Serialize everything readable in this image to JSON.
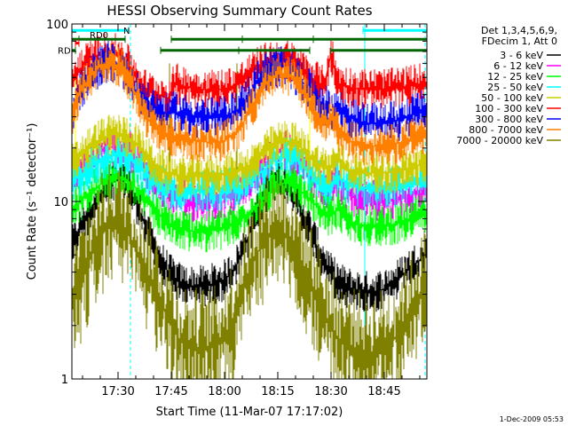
{
  "chart_data": {
    "type": "line",
    "title": "HESSI Observing Summary Count Rates",
    "xlabel": "Start Time (11-Mar-07 17:17:02)",
    "ylabel": "Count Rate (s⁻¹ detector⁻¹)",
    "y_scale": "log",
    "ylim": [
      1,
      100
    ],
    "xlim_minutes_after_17_17": [
      0,
      100
    ],
    "x_ticks": [
      {
        "label": "17:30",
        "minutes": 13
      },
      {
        "label": "17:45",
        "minutes": 28
      },
      {
        "label": "18:00",
        "minutes": 43
      },
      {
        "label": "18:15",
        "minutes": 58
      },
      {
        "label": "18:30",
        "minutes": 73
      },
      {
        "label": "18:45",
        "minutes": 88
      }
    ],
    "y_ticks": [
      {
        "label": "1",
        "value": 1
      },
      {
        "label": "10",
        "value": 10
      },
      {
        "label": "100",
        "value": 100
      }
    ],
    "legend_header": [
      "Det 1,3,4,5,6,9,",
      "FDecim 1, Att 0"
    ],
    "legend_position": "right",
    "series": [
      {
        "name": "3 - 6 keV",
        "color": "#000000",
        "x": [
          0,
          3,
          6,
          9,
          12,
          15,
          18,
          20,
          22,
          25,
          28,
          31,
          35,
          39,
          43,
          46,
          49,
          52,
          55,
          58,
          61,
          64,
          67,
          70,
          73,
          76,
          79,
          82,
          85,
          88,
          91,
          94,
          97,
          100
        ],
        "y": [
          5.5,
          7.5,
          9.5,
          11.5,
          13.5,
          12.8,
          10,
          8,
          6,
          4.6,
          3.8,
          3.4,
          3.3,
          3.4,
          3.6,
          4.2,
          5.8,
          8.5,
          11.5,
          13.8,
          12.5,
          9.5,
          7,
          5,
          3.9,
          3.4,
          3.2,
          3.1,
          3.1,
          3.2,
          3.5,
          4,
          4.5,
          5
        ]
      },
      {
        "name": "6 - 12 keV",
        "color": "#ff00ff",
        "x": [
          0,
          4,
          8,
          12,
          15,
          18,
          21,
          24,
          27,
          30,
          34,
          38,
          42,
          46,
          50,
          54,
          57,
          60,
          63,
          66,
          69,
          72,
          75,
          78,
          81,
          84,
          87,
          90,
          93,
          96,
          100
        ],
        "y": [
          13,
          16,
          19,
          20.5,
          20,
          18,
          15,
          12.5,
          11,
          10.3,
          10,
          10.1,
          10.4,
          11,
          13,
          16,
          18.5,
          19.2,
          18,
          15.5,
          13,
          11.5,
          13.5,
          11,
          10.5,
          10.3,
          10.2,
          10.3,
          10.6,
          11.2,
          12
        ]
      },
      {
        "name": "12 - 25 keV",
        "color": "#00ff00",
        "x": [
          0,
          4,
          8,
          12,
          15,
          18,
          21,
          24,
          27,
          30,
          34,
          38,
          42,
          46,
          50,
          54,
          57,
          60,
          63,
          66,
          69,
          72,
          75,
          78,
          81,
          84,
          87,
          90,
          93,
          96,
          100
        ],
        "y": [
          9,
          10.8,
          12.5,
          14,
          13.5,
          12,
          10,
          8.6,
          7.6,
          7,
          6.8,
          6.8,
          7,
          7.4,
          8.6,
          10.5,
          12,
          12.8,
          12.2,
          10.8,
          9.4,
          8.2,
          9,
          7.8,
          7.4,
          7.3,
          7.3,
          7.4,
          7.6,
          8,
          8.5
        ]
      },
      {
        "name": "25 - 50 keV",
        "color": "#00ffff",
        "x": [
          0,
          4,
          8,
          12,
          15,
          18,
          21,
          24,
          27,
          30,
          34,
          38,
          42,
          46,
          50,
          54,
          57,
          60,
          63,
          66,
          69,
          72,
          75,
          78,
          81,
          84,
          87,
          90,
          93,
          96,
          100
        ],
        "y": [
          13,
          15,
          17,
          18.5,
          18,
          16.5,
          14,
          12.5,
          11.8,
          11.5,
          11.4,
          11.5,
          11.7,
          12,
          13,
          15,
          17,
          18,
          17.5,
          15.5,
          13.5,
          12.2,
          13.8,
          12.2,
          12,
          11.9,
          11.9,
          12,
          12.2,
          12.6,
          13.5
        ]
      },
      {
        "name": "50 - 100 keV",
        "color": "#cccc00",
        "x": [
          0,
          4,
          8,
          12,
          15,
          18,
          21,
          24,
          27,
          30,
          34,
          38,
          42,
          46,
          50,
          54,
          57,
          60,
          63,
          66,
          69,
          72,
          75,
          78,
          81,
          84,
          87,
          90,
          93,
          96,
          100
        ],
        "y": [
          16,
          19.5,
          22.5,
          24,
          23.5,
          21.5,
          18,
          15.5,
          14.4,
          14,
          13.9,
          14,
          14.2,
          14.7,
          16,
          18.5,
          21,
          22,
          21.2,
          19,
          16.5,
          15.2,
          17,
          14.8,
          14.6,
          14.5,
          14.5,
          14.6,
          14.9,
          15.5,
          16.5
        ]
      },
      {
        "name": "100 - 300 keV",
        "color": "#ff0000",
        "x": [
          0,
          2,
          5,
          8,
          11,
          14,
          16,
          18,
          21,
          24,
          27,
          29,
          31,
          35,
          39,
          43,
          47,
          50,
          53,
          56,
          59,
          62,
          65,
          68,
          71,
          73,
          75,
          78,
          81,
          84,
          87,
          90,
          93,
          96,
          100
        ],
        "y": [
          45,
          55,
          62,
          67,
          69,
          65,
          58,
          50,
          42,
          40,
          38,
          46,
          45,
          43,
          42.5,
          43,
          46,
          52,
          58,
          62,
          63,
          61,
          55,
          49,
          44,
          68,
          46,
          44,
          43,
          43,
          43,
          43,
          44,
          45,
          47
        ]
      },
      {
        "name": "300 - 800 keV",
        "color": "#0000ff",
        "x": [
          0,
          2,
          5,
          8,
          11,
          14,
          16,
          18,
          21,
          24,
          27,
          29,
          31,
          35,
          39,
          43,
          47,
          50,
          53,
          56,
          59,
          62,
          65,
          68,
          71,
          73,
          75,
          78,
          81,
          84,
          87,
          90,
          93,
          96,
          100
        ],
        "y": [
          32,
          40,
          50,
          58,
          62,
          58,
          50,
          42,
          36,
          33,
          31,
          32,
          31,
          30,
          29.5,
          30,
          33,
          40,
          50,
          56,
          58,
          55,
          47,
          40,
          35,
          33,
          33,
          30,
          28,
          27.5,
          27.5,
          28,
          29,
          31,
          33
        ]
      },
      {
        "name": "800 - 7000 keV",
        "color": "#ff8000",
        "x": [
          0,
          2,
          5,
          8,
          11,
          14,
          16,
          18,
          21,
          24,
          27,
          29,
          31,
          35,
          39,
          43,
          47,
          50,
          53,
          56,
          59,
          62,
          65,
          68,
          71,
          73,
          75,
          78,
          81,
          84,
          87,
          90,
          93,
          96,
          100
        ],
        "y": [
          30,
          40,
          50,
          58,
          60,
          56,
          48,
          40,
          30,
          26,
          24,
          23,
          22.5,
          22,
          21.5,
          22,
          25,
          32,
          42,
          50,
          53,
          50,
          42,
          34,
          27,
          30,
          24,
          22,
          21,
          20.5,
          20.5,
          21,
          21.5,
          22.5,
          24
        ]
      },
      {
        "name": "7000 - 20000 keV",
        "color": "#808000",
        "x": [
          0,
          2,
          4,
          6,
          8,
          10,
          12,
          15,
          18,
          21,
          24,
          27,
          30,
          33,
          36,
          40,
          43,
          46,
          49,
          52,
          55,
          58,
          61,
          64,
          67,
          70,
          73,
          76,
          79,
          82,
          85,
          88,
          91,
          94,
          97,
          100
        ],
        "y": [
          2.6,
          3.3,
          4.2,
          5.2,
          6.3,
          7.3,
          7.8,
          7,
          5.5,
          4,
          3,
          2.2,
          1.7,
          1.5,
          1.5,
          1.5,
          1.7,
          2.3,
          3.5,
          5,
          6.5,
          7,
          6.2,
          4.8,
          3.6,
          2.6,
          1.9,
          1.6,
          1.5,
          1.4,
          1.4,
          1.5,
          1.7,
          2.1,
          2.7,
          3.4
        ]
      }
    ],
    "flags": [
      {
        "name": "RD0",
        "label": "RD0",
        "color": "#006600",
        "y": 82,
        "segments": [
          [
            0,
            2
          ],
          [
            2,
            15
          ],
          [
            28,
            48
          ],
          [
            48,
            68
          ],
          [
            68,
            100
          ]
        ]
      },
      {
        "name": "RD",
        "label": "RD",
        "color": "#006600",
        "y": 71,
        "segments": [
          [
            0,
            1
          ],
          [
            25,
            47
          ],
          [
            47,
            67
          ],
          [
            73,
            100
          ]
        ]
      },
      {
        "name": "N",
        "label": "N",
        "color": "#00ffff",
        "y": 92,
        "segments": [
          [
            0,
            16
          ],
          [
            82,
            100
          ]
        ]
      },
      {
        "name": "saa-marker",
        "label": "",
        "color": "#ff0000",
        "y": 78,
        "segments": [
          [
            1,
            2
          ]
        ]
      }
    ],
    "vertical_markers": [
      {
        "x": 0,
        "style": "solid",
        "color": "#00ffff"
      },
      {
        "x": 16.5,
        "style": "dashed",
        "color": "#00ffff"
      },
      {
        "x": 82.5,
        "style": "solid",
        "color": "#00ffff"
      },
      {
        "x": 99.5,
        "style": "dashed",
        "color": "#00ffff"
      }
    ],
    "attenuator_steps": [
      {
        "x": 1,
        "color": "#ffff00"
      },
      {
        "x": 27.5,
        "color": "#808000"
      },
      {
        "x": 46.5,
        "color": "#808000"
      },
      {
        "x": 67,
        "color": "#ffff00"
      }
    ],
    "stamp": "1-Dec-2009 05:53"
  }
}
